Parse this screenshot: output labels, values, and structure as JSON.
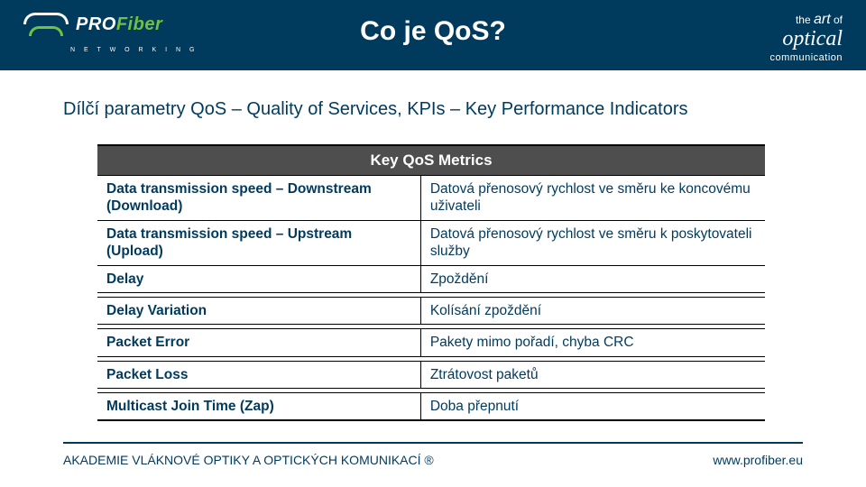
{
  "header": {
    "logo_main": "PRO",
    "logo_accent": "Fiber",
    "logo_sub": "N E T W O R K I N G",
    "tagline_prefix": "the",
    "tagline_art": "art",
    "tagline_of": "of",
    "tagline_main": "optical",
    "tagline_sub": "communication"
  },
  "title": "Co je QoS?",
  "subtitle": "Dílčí parametry QoS – Quality of Services, KPIs – Key Performance Indicators",
  "table": {
    "header": "Key QoS Metrics",
    "rows": [
      {
        "left": "Data transmission speed – Downstream (Download)",
        "right": "Datová přenosový rychlost ve směru ke koncovému uživateli"
      },
      {
        "left": "Data transmission speed – Upstream (Upload)",
        "right": "Datová přenosový rychlost ve směru k poskytovateli služby"
      },
      {
        "left": "Delay",
        "right": "Zpoždění"
      },
      {
        "left": "Delay Variation",
        "right": "Kolísání zpoždění"
      },
      {
        "left": "Packet Error",
        "right": "Pakety mimo pořadí, chyba CRC"
      },
      {
        "left": "Packet Loss",
        "right": "Ztrátovost paketů"
      },
      {
        "left": "Multicast Join Time (Zap)",
        "right": "Doba přepnutí"
      }
    ],
    "gap_after_index": [
      2,
      3,
      4,
      5
    ]
  },
  "footer": {
    "left": "AKADEMIE VLÁKNOVÉ OPTIKY  A OPTICKÝCH KOMUNIKACÍ ®",
    "right": "www.profiber.eu"
  },
  "colors": {
    "primary": "#003a5d",
    "accent": "#71bf43",
    "header_dark": "#4e4e4e"
  }
}
